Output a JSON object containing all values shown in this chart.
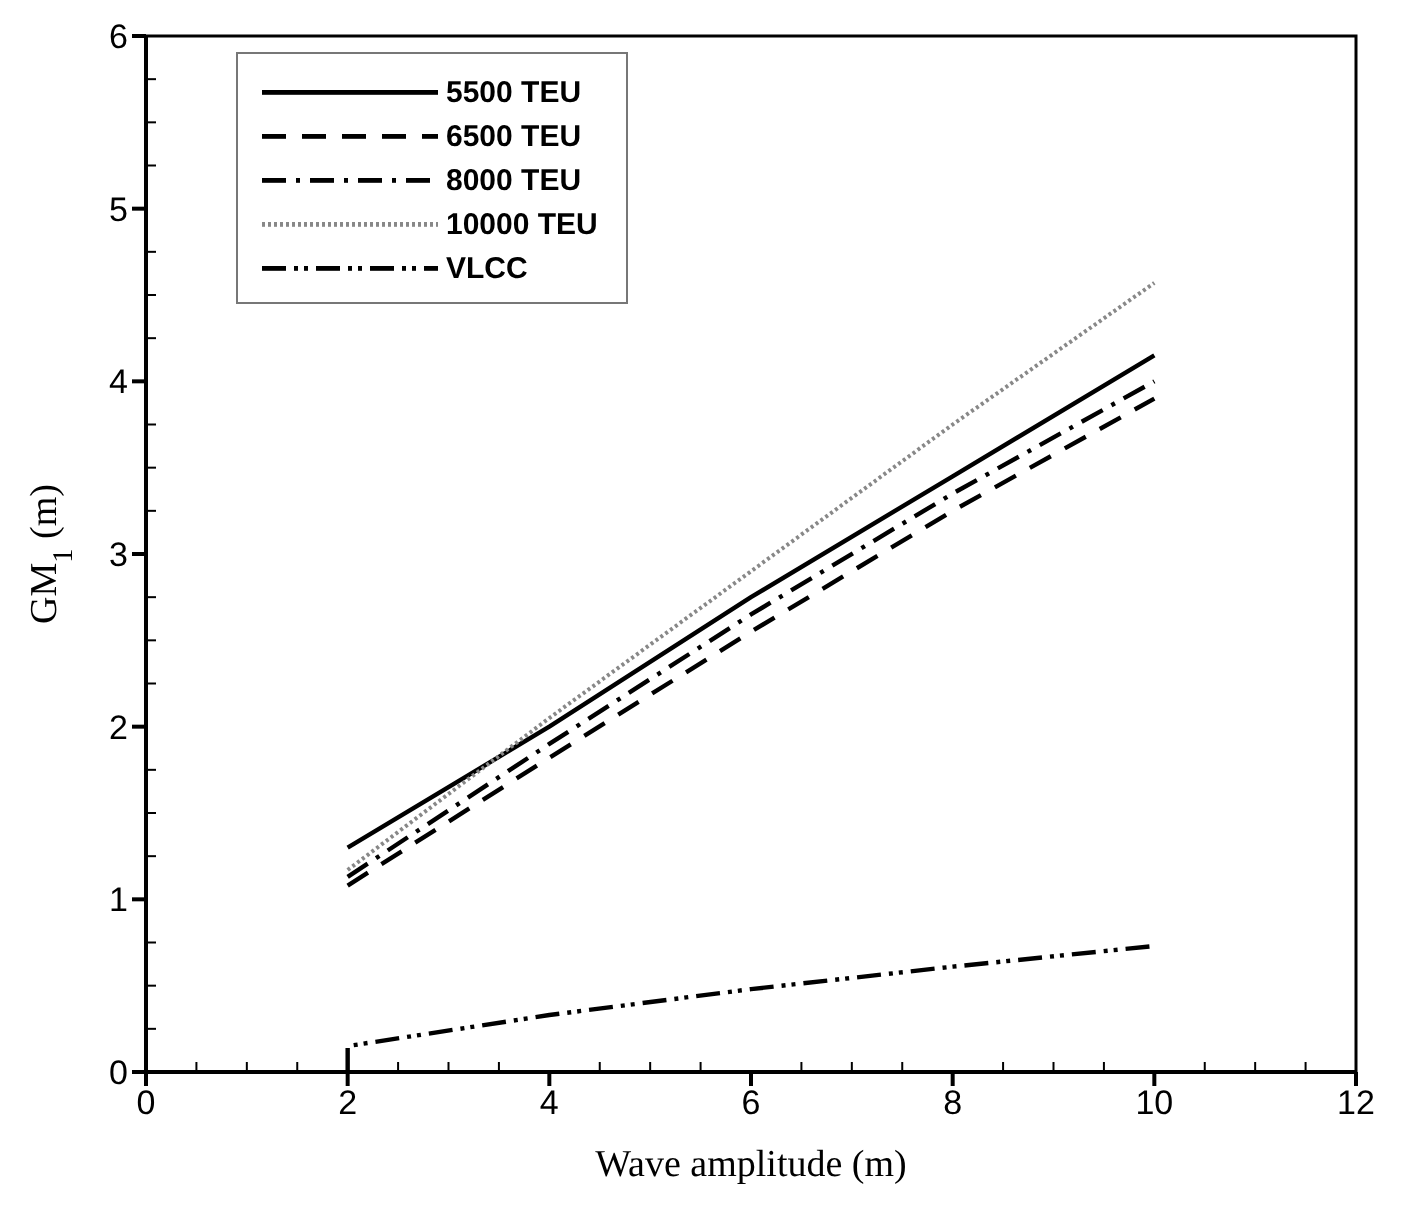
{
  "chart_data": {
    "type": "line",
    "xlabel": "Wave amplitude (m)",
    "ylabel": "GM$_{1}$ (m)",
    "xlim": [
      0,
      12
    ],
    "ylim": [
      0,
      6
    ],
    "xticks": [
      0,
      2,
      4,
      6,
      8,
      10,
      12
    ],
    "yticks": [
      0,
      1,
      2,
      3,
      4,
      5,
      6
    ],
    "grid": false,
    "legend": "top left",
    "marker": "none",
    "series": [
      {
        "name": "5500 TEU",
        "color": "#000000",
        "line_style": "solid",
        "x": [
          2,
          4,
          6,
          8,
          10
        ],
        "values": [
          1.3,
          2.0,
          2.75,
          3.45,
          4.15
        ]
      },
      {
        "name": "6500 TEU",
        "color": "#000000",
        "line_style": "dashed",
        "x": [
          2,
          4,
          6,
          8,
          10
        ],
        "values": [
          1.08,
          1.82,
          2.55,
          3.25,
          3.9
        ]
      },
      {
        "name": "8000 TEU",
        "color": "#000000",
        "line_style": "dashdot",
        "x": [
          2,
          4,
          6,
          8,
          10
        ],
        "values": [
          1.13,
          1.9,
          2.65,
          3.35,
          4.0
        ]
      },
      {
        "name": "10000 TEU",
        "color": "#888888",
        "line_style": "dotted",
        "x": [
          2,
          4,
          6,
          8,
          10
        ],
        "values": [
          1.17,
          2.05,
          2.9,
          3.75,
          4.57
        ]
      },
      {
        "name": "VLCC",
        "color": "#000000",
        "line_style": "dashdotdot",
        "x": [
          2,
          2,
          4,
          6,
          8,
          10
        ],
        "values": [
          0,
          0.15,
          0.33,
          0.48,
          0.61,
          0.73
        ]
      }
    ]
  }
}
